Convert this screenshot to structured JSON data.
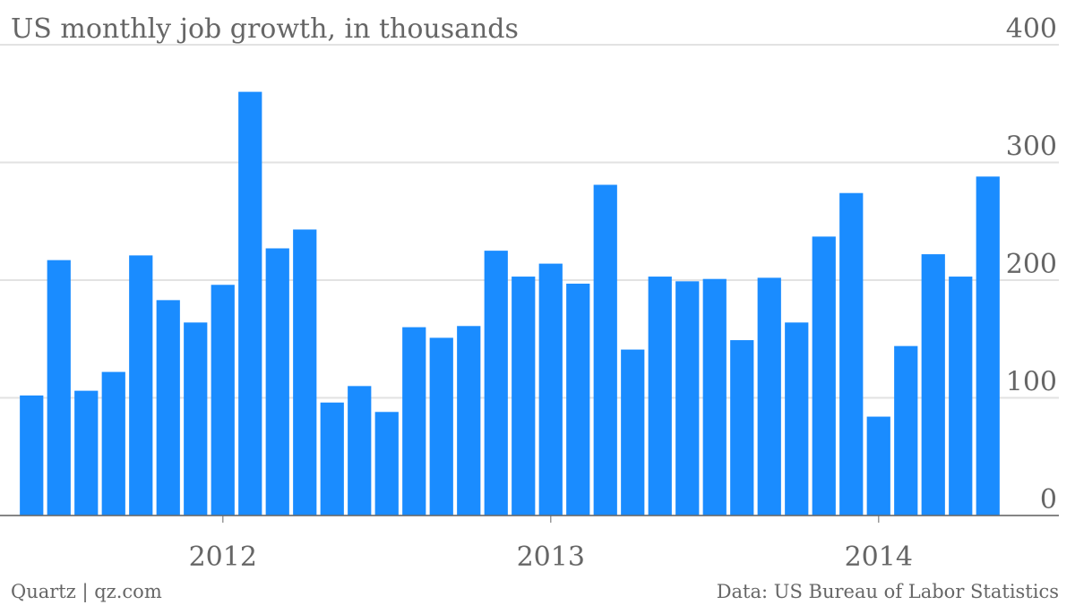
{
  "chart_data": {
    "type": "bar",
    "title": "US monthly job growth, in thousands",
    "source": "Data: US Bureau of Labor Statistics",
    "credit": "Quartz | qz.com",
    "categories": [
      null,
      null,
      null,
      null,
      null,
      null,
      null,
      "2012",
      null,
      null,
      null,
      null,
      null,
      null,
      null,
      null,
      null,
      null,
      null,
      "2013",
      null,
      null,
      null,
      null,
      null,
      null,
      null,
      null,
      null,
      null,
      null,
      "2014",
      null,
      null,
      null,
      null
    ],
    "values": [
      102,
      217,
      106,
      122,
      221,
      183,
      164,
      196,
      360,
      227,
      243,
      96,
      110,
      88,
      160,
      151,
      161,
      225,
      203,
      214,
      197,
      281,
      141,
      203,
      199,
      201,
      149,
      202,
      164,
      237,
      274,
      84,
      144,
      222,
      203,
      288
    ],
    "color": "#1a8cff",
    "ylim": [
      0,
      400
    ],
    "yticks": [
      0,
      100,
      200,
      300,
      400
    ],
    "grid": true,
    "y_axis_side": "right"
  }
}
